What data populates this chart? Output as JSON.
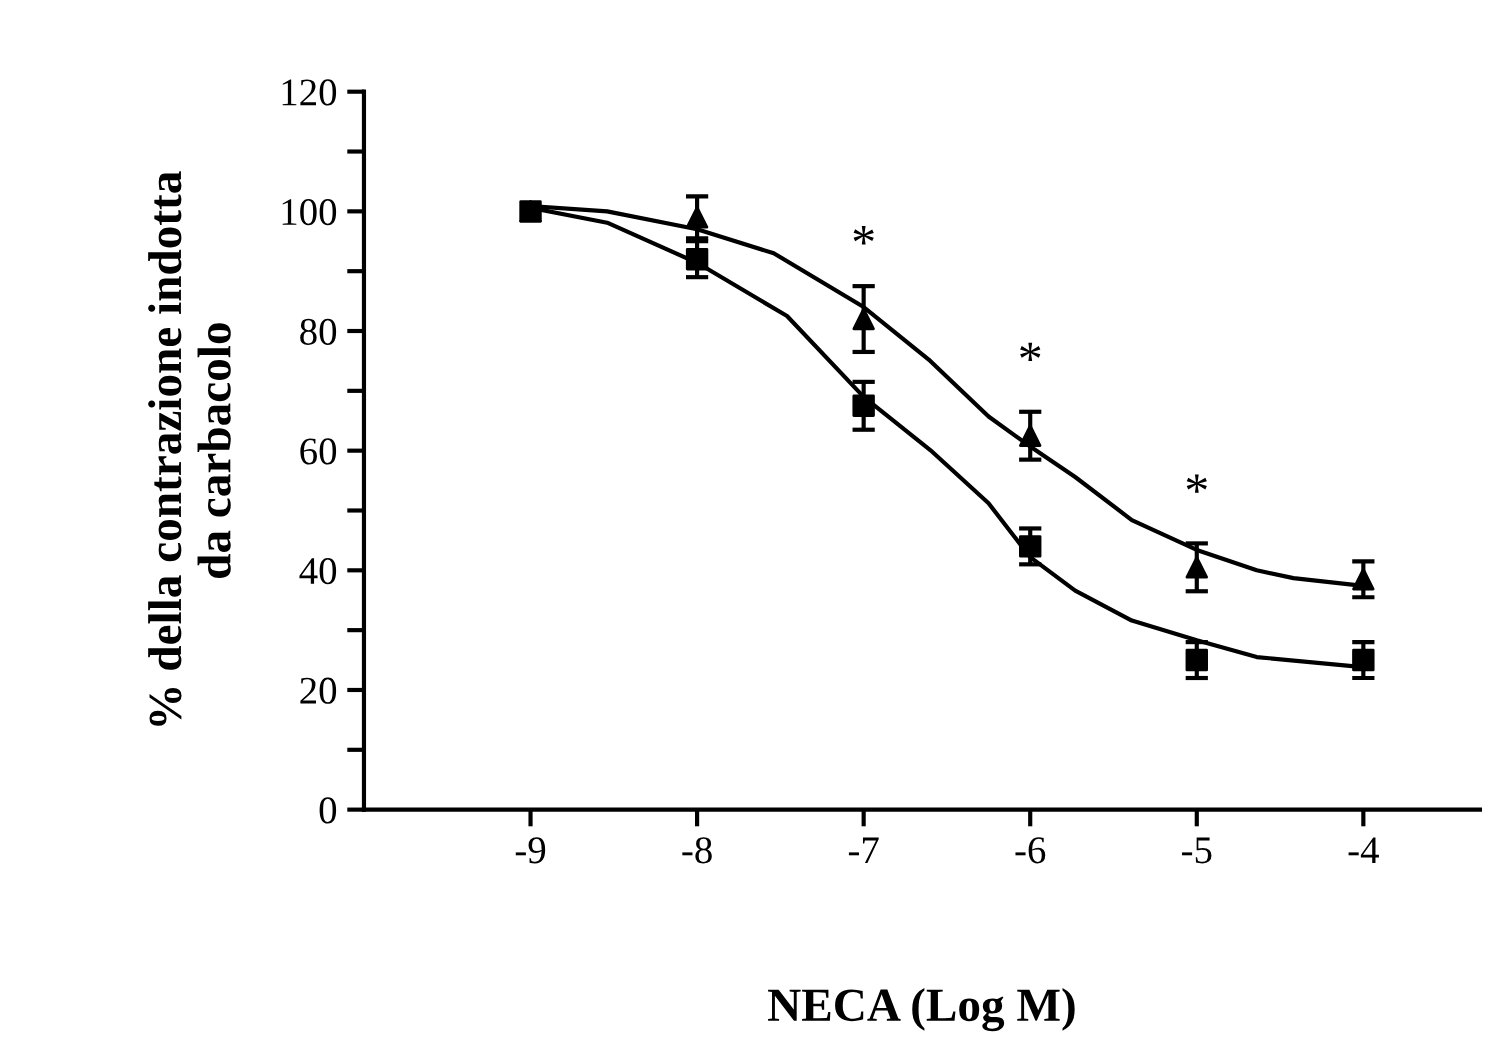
{
  "chart_data": {
    "type": "scatter",
    "xlabel": "NECA (Log M)",
    "ylabel": "% della contrazione indotta\nda carbacolo",
    "xlim": [
      -10,
      -3.3
    ],
    "xticks": [
      -9,
      -8,
      -7,
      -6,
      -5,
      -4
    ],
    "ylim": [
      0,
      120
    ],
    "yticks": [
      0,
      {
        "value": 10,
        "label": null
      },
      20,
      {
        "value": 30,
        "label": null
      },
      40,
      {
        "value": 50,
        "label": null
      },
      60,
      {
        "value": 70,
        "label": null
      },
      80,
      {
        "value": 90,
        "label": null
      },
      100,
      {
        "value": 110,
        "label": null
      },
      120
    ],
    "grid": false,
    "legend": false,
    "series": [
      {
        "type": "line",
        "color": "#000000",
        "marker": "none",
        "line_style": "solid",
        "x": [
          -9,
          -8.54,
          -8,
          -7.54,
          -7,
          -6.6,
          -6.25,
          -6,
          -5.73,
          -5.39,
          -5,
          -4.64,
          -4.42,
          -4
        ],
        "values": [
          100.9,
          100,
          97,
          93,
          84,
          75,
          65.7,
          60.7,
          55.6,
          48.4,
          43.4,
          40,
          38.7,
          37.4
        ]
      },
      {
        "type": "line",
        "color": "#000000",
        "marker": "none",
        "line_style": "solid",
        "x": [
          -9,
          -8.54,
          -8,
          -7.46,
          -7,
          -6.6,
          -6.25,
          -6,
          -5.73,
          -5.39,
          -5,
          -4.64,
          -4
        ],
        "values": [
          100.6,
          98.1,
          91.4,
          82.5,
          69,
          60.1,
          51.2,
          42.2,
          36.6,
          31.6,
          28.3,
          25.5,
          23.8
        ]
      },
      {
        "color": "#000000",
        "marker": "square",
        "x": [
          -9,
          -8,
          -7,
          -6,
          -5,
          -4
        ],
        "values": [
          100,
          92,
          67.5,
          44,
          25,
          25
        ],
        "errors": [
          null,
          3,
          4,
          3,
          3,
          3
        ]
      },
      {
        "color": "#000000",
        "marker": "triangle",
        "x": [
          -9,
          -8,
          -7,
          -6,
          -5,
          -4
        ],
        "values": [
          100,
          99,
          82,
          62.5,
          40.5,
          38.5
        ],
        "errors": [
          null,
          3.5,
          5.5,
          4,
          4,
          3
        ]
      }
    ],
    "annotations": [
      {
        "text": "*",
        "x": -7,
        "y": 82
      },
      {
        "text": "*",
        "x": -6,
        "y": 62.5
      },
      {
        "text": "*",
        "x": -5,
        "y": 40.5
      }
    ]
  }
}
